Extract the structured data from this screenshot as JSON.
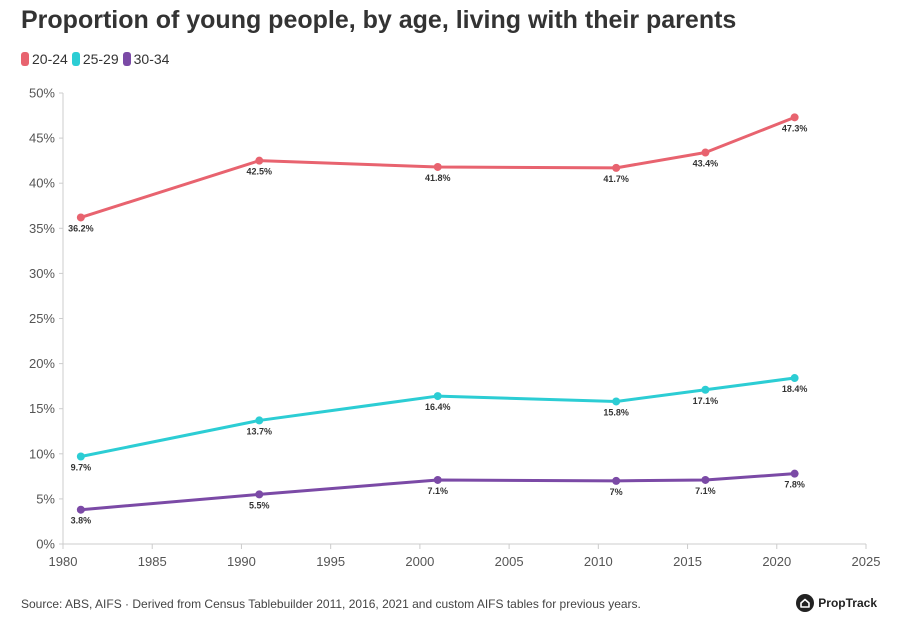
{
  "chart_data": {
    "type": "line",
    "title": "Proportion of young people, by age, living with their parents",
    "xlabel": "",
    "ylabel": "",
    "xlim": [
      1980,
      2025
    ],
    "ylim": [
      0,
      50
    ],
    "x_ticks": [
      1980,
      1985,
      1990,
      1995,
      2000,
      2005,
      2010,
      2015,
      2020,
      2025
    ],
    "y_ticks": [
      0,
      5,
      10,
      15,
      20,
      25,
      30,
      35,
      40,
      45,
      50
    ],
    "y_tick_labels": [
      "0%",
      "5%",
      "10%",
      "15%",
      "20%",
      "25%",
      "30%",
      "35%",
      "40%",
      "45%",
      "50%"
    ],
    "legend_position": "top-left",
    "x": [
      1981,
      1991,
      2001,
      2011,
      2016,
      2021
    ],
    "series": [
      {
        "name": "20-24",
        "color": "#e8636f",
        "values": [
          36.2,
          42.5,
          41.8,
          41.7,
          43.4,
          47.3
        ],
        "labels": [
          "36.2%",
          "42.5%",
          "41.8%",
          "41.7%",
          "43.4%",
          "47.3%"
        ]
      },
      {
        "name": "25-29",
        "color": "#2ccdd4",
        "values": [
          9.7,
          13.7,
          16.4,
          15.8,
          17.1,
          18.4
        ],
        "labels": [
          "9.7%",
          "13.7%",
          "16.4%",
          "15.8%",
          "17.1%",
          "18.4%"
        ]
      },
      {
        "name": "30-34",
        "color": "#7b4aa6",
        "values": [
          3.8,
          5.5,
          7.1,
          7.0,
          7.1,
          7.8
        ],
        "labels": [
          "3.8%",
          "5.5%",
          "7.1%",
          "7%",
          "7.1%",
          "7.8%"
        ]
      }
    ]
  },
  "legend": {
    "items": [
      {
        "label": "20-24",
        "color": "#e8636f"
      },
      {
        "label": "25-29",
        "color": "#2ccdd4"
      },
      {
        "label": "30-34",
        "color": "#7b4aa6"
      }
    ]
  },
  "footer": {
    "source": "Source: ABS, AIFS · Derived from Census Tablebuilder 2011, 2016, 2021 and custom AIFS tables for previous years."
  },
  "brand": {
    "name": "PropTrack"
  }
}
